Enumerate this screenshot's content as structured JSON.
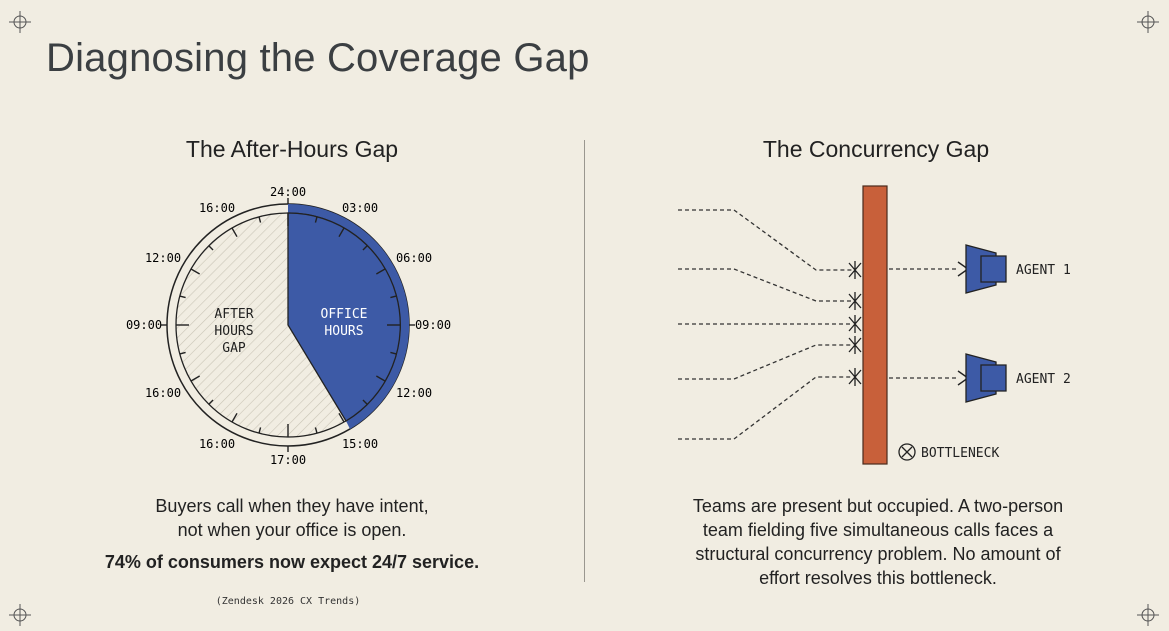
{
  "title": "Diagnosing the Coverage Gap",
  "left": {
    "heading": "The After-Hours Gap",
    "clock_labels": [
      "24:00",
      "03:00",
      "06:00",
      "09:00",
      "12:00",
      "15:00",
      "17:00",
      "16:00",
      "16:00",
      "09:00",
      "12:00",
      "16:00"
    ],
    "after_hours_label": [
      "AFTER",
      "HOURS",
      "GAP"
    ],
    "office_label": [
      "OFFICE",
      "HOURS"
    ],
    "caption_line1": "Buyers call when they have intent,",
    "caption_line2": "not when your office is open.",
    "stat": "74% of consumers now expect 24/7 service.",
    "source": "(Zendesk 2026 CX Trends)"
  },
  "right": {
    "heading": "The Concurrency Gap",
    "agent1": "AGENT 1",
    "agent2": "AGENT 2",
    "bottleneck": "BOTTLENECK",
    "caption_line1": "Teams are present but occupied. A two-person",
    "caption_line2": "team fielding five simultaneous calls faces a",
    "caption_line3": "structural concurrency problem. No amount of",
    "caption_line4": "effort resolves this bottleneck."
  },
  "colors": {
    "background": "#f1ede2",
    "office_blue": "#3d5aa6",
    "bottleneck_orange": "#c8603a",
    "ink": "#222222"
  },
  "icons": [
    "crosshair-icon",
    "agent-headset-icon",
    "x-circle-icon"
  ]
}
